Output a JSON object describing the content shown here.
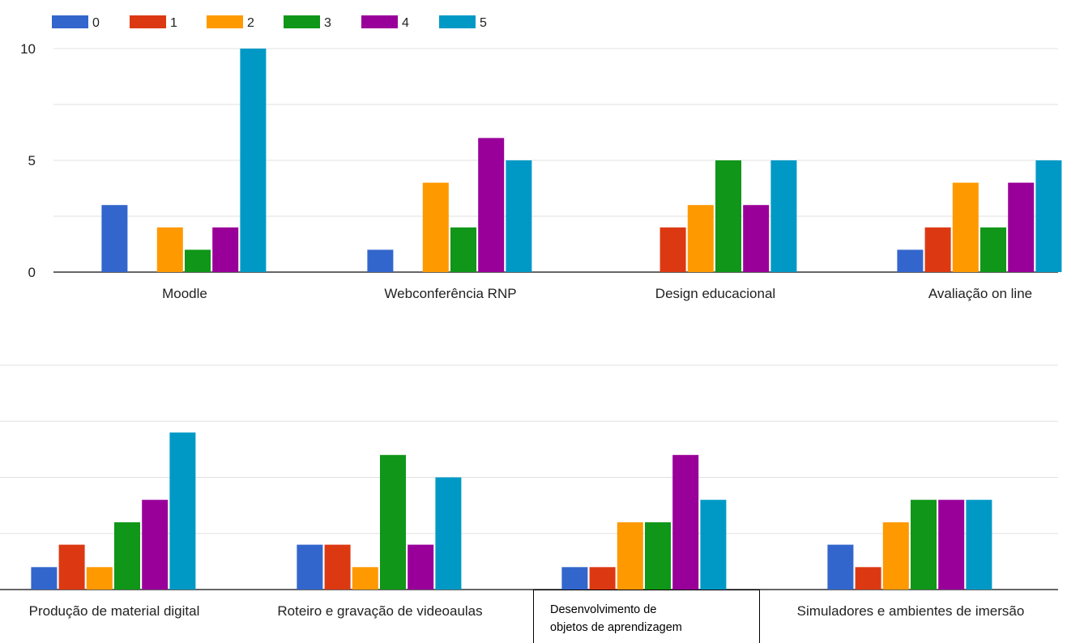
{
  "chart_data": [
    {
      "type": "bar",
      "legend": {
        "position": "top-left",
        "entries": [
          "0",
          "1",
          "2",
          "3",
          "4",
          "5"
        ]
      },
      "colors": [
        "#3366cc",
        "#dc3912",
        "#ff9900",
        "#109618",
        "#990099",
        "#0099c6"
      ],
      "categories": [
        "Moodle",
        "Webconferência RNP",
        "Design educacional",
        "Avaliação on line"
      ],
      "series": [
        {
          "name": "0",
          "values": [
            3,
            1,
            0,
            1
          ]
        },
        {
          "name": "1",
          "values": [
            0,
            0,
            2,
            2
          ]
        },
        {
          "name": "2",
          "values": [
            2,
            4,
            3,
            4
          ]
        },
        {
          "name": "3",
          "values": [
            1,
            2,
            5,
            2
          ]
        },
        {
          "name": "4",
          "values": [
            2,
            6,
            3,
            4
          ]
        },
        {
          "name": "5",
          "values": [
            10,
            5,
            5,
            5
          ]
        }
      ],
      "ylim": [
        0,
        10
      ],
      "yticks": [
        0,
        5,
        10
      ],
      "grid": true
    },
    {
      "type": "bar",
      "colors": [
        "#3366cc",
        "#dc3912",
        "#ff9900",
        "#109618",
        "#990099",
        "#0099c6"
      ],
      "categories": [
        "Produção de material digital",
        "Roteiro e gravação de videoaulas",
        "Desenvolvimento de objetos de aprendizagem",
        "Simuladores e ambientes de imersão"
      ],
      "category_label_lines": [
        [
          "Produção de material digital"
        ],
        [
          "Roteiro e gravação de videoaulas"
        ],
        [
          "Desenvolvimento de",
          "objetos de aprendizagem"
        ],
        [
          "Simuladores e ambientes de imersão"
        ]
      ],
      "series": [
        {
          "name": "0",
          "values": [
            1,
            2,
            1,
            2
          ]
        },
        {
          "name": "1",
          "values": [
            2,
            2,
            1,
            1
          ]
        },
        {
          "name": "2",
          "values": [
            1,
            1,
            3,
            3
          ]
        },
        {
          "name": "3",
          "values": [
            3,
            6,
            3,
            4
          ]
        },
        {
          "name": "4",
          "values": [
            4,
            2,
            6,
            4
          ]
        },
        {
          "name": "5",
          "values": [
            7,
            5,
            4,
            4
          ]
        }
      ],
      "ylim": [
        0,
        10
      ],
      "grid": true
    }
  ]
}
